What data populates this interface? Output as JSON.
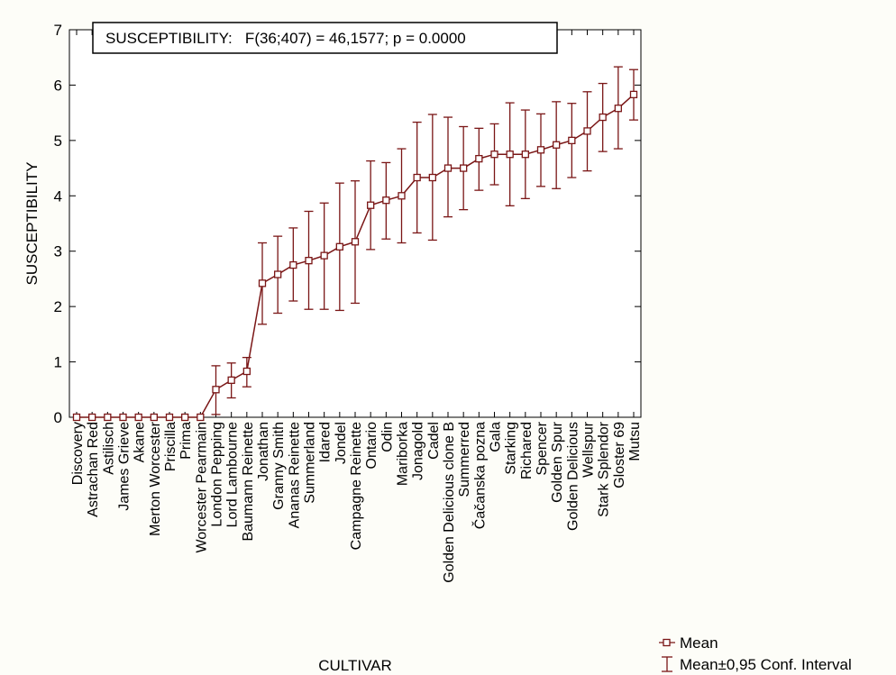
{
  "stat_box": "SUSCEPTIBILITY:   F(36;407) = 46,1577; p = 0.0000",
  "legend": {
    "mean": "Mean",
    "ci": "Mean±0,95 Conf. Interval"
  },
  "colors": {
    "series": "#7a1616",
    "axis": "#000000",
    "background": "#fdfdf8",
    "plot_area": "#ffffff"
  },
  "chart_data": {
    "type": "line",
    "xlabel": "CULTIVAR",
    "ylabel": "SUSCEPTIBILITY",
    "ylim": [
      0,
      7
    ],
    "yticks": [
      0,
      1,
      2,
      3,
      4,
      5,
      6,
      7
    ],
    "grid": false,
    "legend_position": "bottom-right",
    "categories": [
      "Discovery",
      "Astrachan Red",
      "Astilisch",
      "James Grieve",
      "Akane",
      "Merton Worcester",
      "Priscilla",
      "Prima",
      "Worcester Pearmain",
      "London Pepping",
      "Lord Lambourne",
      "Baumann Reinette",
      "Jonathan",
      "Granny Smith",
      "Ananas Reinette",
      "Summerland",
      "Idared",
      "Jondel",
      "Campagne Reinette",
      "Ontario",
      "Odin",
      "Mariborka",
      "Jonagold",
      "Cadel",
      "Golden Delicious clone B",
      "Summerred",
      "Čačanska pozna",
      "Gala",
      "Starking",
      "Richared",
      "Spencer",
      "Golden Spur",
      "Golden Delicious",
      "Wellspur",
      "Stark Splendor",
      "Gloster 69",
      "Mutsu"
    ],
    "series": [
      {
        "name": "Mean",
        "values": [
          0,
          0,
          0,
          0,
          0,
          0,
          0,
          0,
          0,
          0.5,
          0.67,
          0.83,
          2.42,
          2.58,
          2.75,
          2.83,
          2.92,
          3.08,
          3.17,
          3.83,
          3.92,
          4.0,
          4.33,
          4.33,
          4.5,
          4.5,
          4.67,
          4.75,
          4.75,
          4.75,
          4.83,
          4.92,
          5.0,
          5.17,
          5.42,
          5.58,
          5.83
        ]
      },
      {
        "name": "Mean±0,95 Conf. Interval",
        "lower": [
          0,
          0,
          0,
          0,
          0,
          0,
          0,
          0,
          0,
          0.05,
          0.35,
          0.55,
          1.68,
          1.88,
          2.1,
          1.95,
          1.95,
          1.93,
          2.06,
          3.03,
          3.22,
          3.15,
          3.33,
          3.2,
          3.62,
          3.75,
          4.1,
          4.2,
          3.82,
          3.95,
          4.17,
          4.13,
          4.33,
          4.45,
          4.8,
          4.85,
          5.37
        ],
        "upper": [
          0,
          0,
          0,
          0,
          0,
          0,
          0,
          0,
          0,
          0.93,
          0.98,
          1.08,
          3.15,
          3.27,
          3.42,
          3.72,
          3.87,
          4.23,
          4.27,
          4.63,
          4.6,
          4.85,
          5.33,
          5.47,
          5.42,
          5.25,
          5.22,
          5.3,
          5.68,
          5.55,
          5.48,
          5.7,
          5.67,
          5.88,
          6.03,
          6.33,
          6.28
        ]
      }
    ]
  }
}
